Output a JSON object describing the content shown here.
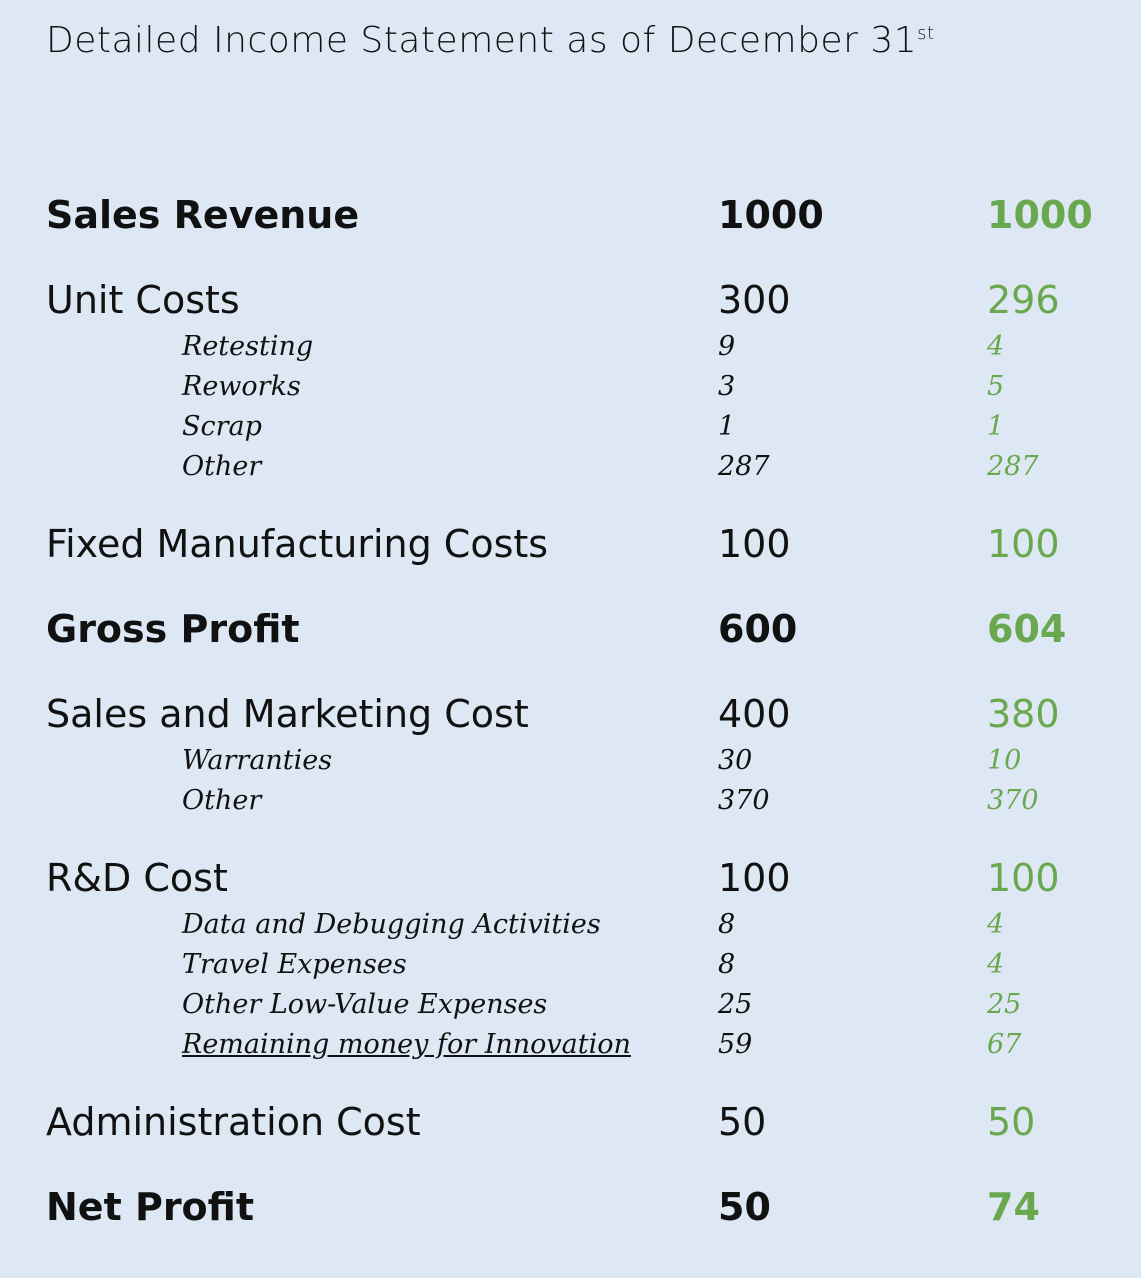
{
  "title": {
    "text": "Detailed Income Statement as of December 31",
    "superscript": "st"
  },
  "sections": [
    {
      "label": "Sales Revenue",
      "values": [
        1000,
        1000
      ],
      "items": []
    },
    {
      "label": "Unit Costs",
      "values": [
        300,
        296
      ],
      "items": [
        {
          "label": "Retesting",
          "values": [
            9,
            4
          ]
        },
        {
          "label": "Reworks",
          "values": [
            3,
            5
          ]
        },
        {
          "label": "Scrap",
          "values": [
            1,
            1
          ]
        },
        {
          "label": "Other",
          "values": [
            287,
            287
          ]
        }
      ]
    },
    {
      "label": "Fixed Manufacturing Costs",
      "values": [
        100,
        100
      ],
      "items": []
    },
    {
      "label": "Gross Profit",
      "values": [
        600,
        604
      ],
      "items": []
    },
    {
      "label": "Sales and Marketing Cost",
      "values": [
        400,
        380
      ],
      "items": [
        {
          "label": "Warranties",
          "values": [
            30,
            10
          ]
        },
        {
          "label": "Other",
          "values": [
            370,
            370
          ]
        }
      ]
    },
    {
      "label": "R&D Cost",
      "values": [
        100,
        100
      ],
      "items": [
        {
          "label": "Data and Debugging Activities",
          "values": [
            8,
            4
          ]
        },
        {
          "label": "Travel Expenses",
          "values": [
            8,
            4
          ]
        },
        {
          "label": "Other Low-Value Expenses",
          "values": [
            25,
            25
          ]
        },
        {
          "label": "Remaining money for Innovation",
          "values": [
            59,
            67
          ]
        }
      ]
    },
    {
      "label": "Administration Cost",
      "values": [
        50,
        50
      ],
      "items": []
    },
    {
      "label": "Net Profit",
      "values": [
        50,
        74
      ],
      "items": []
    }
  ]
}
